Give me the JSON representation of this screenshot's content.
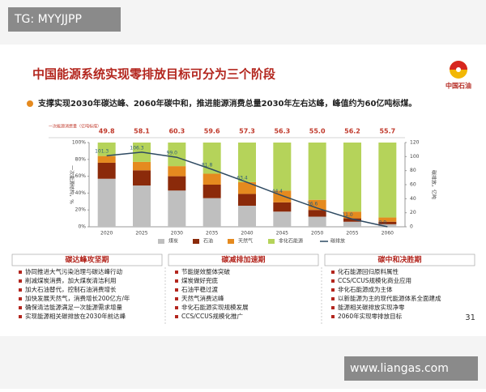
{
  "watermark_top": "TG: MYYJJPP",
  "header": {
    "title": "中国能源系统实现零排放目标可分为三个阶段",
    "logo": "中国石油"
  },
  "subtitle": "支撑实现2030年碳达峰、2060年碳中和，推进能源消费总量2030年左右达峰，峰值约为60亿吨标煤。",
  "chart_data": {
    "type": "bar",
    "stacked": true,
    "categories": [
      "2020",
      "2025",
      "2030",
      "2035",
      "2040",
      "2045",
      "2050",
      "2055",
      "2060"
    ],
    "series": [
      {
        "name": "煤炭",
        "color": "#bfbfbf",
        "values": [
          57,
          49,
          43,
          34,
          25,
          18,
          12,
          6,
          3
        ]
      },
      {
        "name": "石油",
        "color": "#8b2a0a",
        "values": [
          19,
          18,
          17,
          16,
          14,
          11,
          8,
          4,
          3
        ]
      },
      {
        "name": "天然气",
        "color": "#e58a1f",
        "values": [
          8,
          10,
          12,
          13,
          14,
          14,
          12,
          8,
          5
        ]
      },
      {
        "name": "非化石能源",
        "color": "#b5d35a",
        "values": [
          16,
          23,
          28,
          37,
          47,
          57,
          68,
          82,
          89
        ]
      },
      {
        "name": "碳排放",
        "type": "line",
        "axis": "y2",
        "color": "#2e4a62",
        "values": [
          101.3,
          106.3,
          99.0,
          81.8,
          63.4,
          44.4,
          26.6,
          11.0,
          0.0
        ],
        "value_labels": [
          "101.3",
          "106.3",
          "99.0",
          "81.8",
          "63.4",
          "44.4",
          "26.6",
          "11.0",
          "0.0"
        ]
      }
    ],
    "totals": {
      "label": "一次能源消费量（亿吨标煤）",
      "color": "#c0392b",
      "values": [
        49.8,
        58.1,
        60.3,
        59.6,
        57.3,
        56.3,
        55.0,
        56.2,
        55.7
      ],
      "value_labels": [
        "49.8",
        "58.1",
        "60.3",
        "59.6",
        "57.3",
        "56.3",
        "55.0",
        "56.2",
        "55.7"
      ]
    },
    "y_label": "一次能源结构，%",
    "y2_label": "碳排放，亿吨",
    "ylim": [
      0,
      100
    ],
    "yticks": [
      {
        "value": 0,
        "label": "0%"
      },
      {
        "value": 20,
        "label": "20%"
      },
      {
        "value": 40,
        "label": "40%"
      },
      {
        "value": 60,
        "label": "60%"
      },
      {
        "value": 80,
        "label": "80%"
      },
      {
        "value": 100,
        "label": "100%"
      }
    ],
    "y2lim": [
      0,
      120
    ],
    "y2ticks": [
      0,
      20,
      40,
      60,
      80,
      100,
      120
    ],
    "legend": "bottom"
  },
  "stages": [
    {
      "title": "碳达峰攻坚期",
      "items": [
        "协同推进大气污染治理与碳达峰行动",
        "削减煤炭消费，加大煤炭清洁利用",
        "加大石油替代，控制石油消费增长",
        "加快发展天然气，消费增长200亿方/年",
        "确保清洁能源满足一次能源需求增量",
        "实现能源相关碳排放在2030年前达峰"
      ]
    },
    {
      "title": "碳减排加速期",
      "items": [
        "节能提效整体突破",
        "煤炭做好兜底",
        "石油平稳过渡",
        "天然气消费达峰",
        "非化石能源实现规模发展",
        "CCS/CCUS规模化推广"
      ]
    },
    {
      "title": "碳中和决胜期",
      "items": [
        "化石能源回归原料属性",
        "CCS/CCUS规模化商业应用",
        "非化石能源成为主体",
        "以新能源为主的现代能源体系全面建成",
        "能源相关碳排放实现净零",
        "2060年实现零排放目标"
      ]
    }
  ],
  "page_number": "31",
  "watermark_bottom": "www.liangas.com"
}
